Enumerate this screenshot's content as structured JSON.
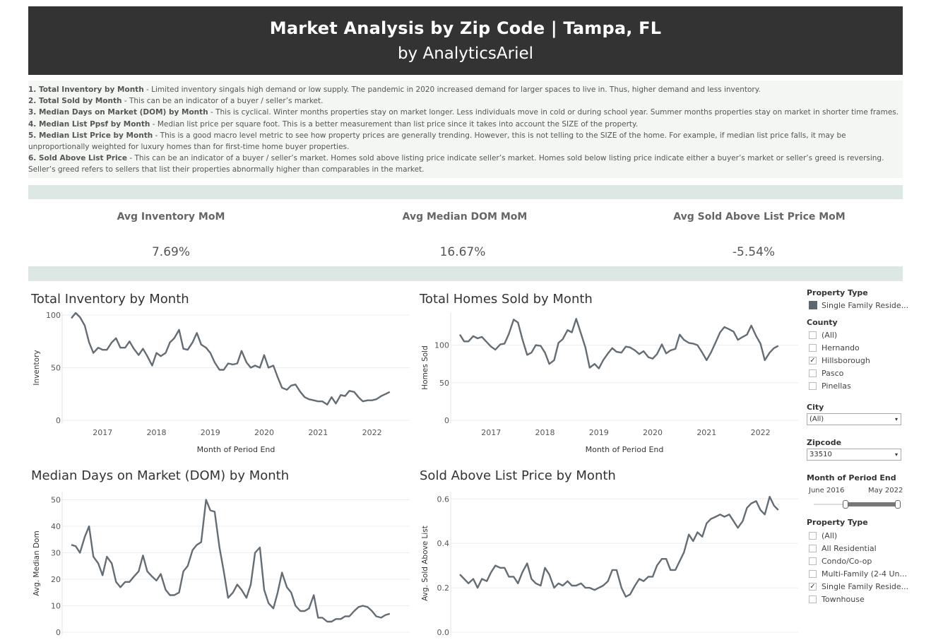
{
  "header": {
    "title": "Market Analysis by Zip Code | Tampa, FL",
    "subtitle": "by AnalyticsAriel"
  },
  "notes": [
    {
      "label": "1. Total Inventory by Month",
      "text": " - Limited inventory singals high demand or low supply. The pandemic in 2020 increased demand for larger spaces to live in. Thus, higher demand and less inventory."
    },
    {
      "label": "2. Total Sold by Month",
      "text": " - This can be an indicator of a buyer / seller’s market."
    },
    {
      "label": "3. Median Days on Market (DOM) by Month",
      "text": " - This is cyclical. Winter months properties stay on market longer. Less individuals move in cold or during school year. Summer months properties stay on market in shorter time frames."
    },
    {
      "label": "4. Median List Ppsf by Month",
      "text": " - Median list price per square foot. This is a better measurement than list price since it takes into account the SIZE of the property."
    },
    {
      "label": "5. Median List Price by Month",
      "text": " - This is a good macro level metric to see how property prices are generally trending. However, this is not telling to the SIZE of the home. For example, if median list price falls, it may be unproportionally weighted for luxury homes than for first-time home buyer properties."
    },
    {
      "label": "6. Sold Above List Price",
      "text": " - This can be an indicator of a buyer / seller’s market. Homes sold above listing price indicate seller’s market. Homes sold below listing price indicate either a buyer’s market or seller’s greed is reversing. Seller’s greed refers to sellers that list their properties abnormally higher than comparables in the market."
    }
  ],
  "kpis": [
    {
      "title": "Avg Inventory MoM",
      "value": "7.69%"
    },
    {
      "title": "Avg Median DOM MoM",
      "value": "16.67%"
    },
    {
      "title": "Avg Sold Above List Price MoM",
      "value": "-5.54%"
    }
  ],
  "filters": {
    "property_type_top": {
      "label": "Property Type",
      "legend_item": "Single Family Reside...",
      "legend_color": "#5e6670"
    },
    "county": {
      "label": "County",
      "options": [
        {
          "label": "(All)",
          "checked": false
        },
        {
          "label": "Hernando",
          "checked": false
        },
        {
          "label": "Hillsborough",
          "checked": true
        },
        {
          "label": "Pasco",
          "checked": false
        },
        {
          "label": "Pinellas",
          "checked": false
        }
      ]
    },
    "city": {
      "label": "City",
      "value": "(All)"
    },
    "zipcode": {
      "label": "Zipcode",
      "value": "33510"
    },
    "period": {
      "label": "Month of Period End",
      "start": "June 2016",
      "end": "May 2022"
    },
    "property_type": {
      "label": "Property Type",
      "options": [
        {
          "label": "(All)",
          "checked": false
        },
        {
          "label": "All Residential",
          "checked": false
        },
        {
          "label": "Condo/Co-op",
          "checked": false
        },
        {
          "label": "Multi-Family (2-4 Un...",
          "checked": false
        },
        {
          "label": "Single Family Reside...",
          "checked": true
        },
        {
          "label": "Townhouse",
          "checked": false
        }
      ]
    },
    "check_glyph": "✓",
    "dropdown_icon": "▾"
  },
  "chart_data": [
    {
      "id": "inventory",
      "type": "line",
      "title": "Total Inventory by Month",
      "xlabel": "Month of Period End",
      "ylabel": "Inventory",
      "color": "#646c74",
      "xlim": [
        2016.25,
        2022.7
      ],
      "ylim": [
        0,
        100
      ],
      "yticks": [
        0,
        50,
        100
      ],
      "xticks": [
        2017,
        2018,
        2019,
        2020,
        2021,
        2022
      ],
      "xticklabels": [
        "2017",
        "2018",
        "2019",
        "2020",
        "2021",
        "2022"
      ],
      "x": [
        2016.42,
        2016.5,
        2016.58,
        2016.67,
        2016.75,
        2016.83,
        2016.92,
        2017.0,
        2017.08,
        2017.17,
        2017.25,
        2017.33,
        2017.42,
        2017.5,
        2017.58,
        2017.67,
        2017.75,
        2017.83,
        2017.92,
        2018.0,
        2018.08,
        2018.17,
        2018.25,
        2018.33,
        2018.42,
        2018.5,
        2018.58,
        2018.67,
        2018.75,
        2018.83,
        2018.92,
        2019.0,
        2019.08,
        2019.17,
        2019.25,
        2019.33,
        2019.42,
        2019.5,
        2019.58,
        2019.67,
        2019.75,
        2019.83,
        2019.92,
        2020.0,
        2020.08,
        2020.17,
        2020.25,
        2020.33,
        2020.42,
        2020.5,
        2020.58,
        2020.67,
        2020.75,
        2020.83,
        2020.92,
        2021.0,
        2021.08,
        2021.17,
        2021.25,
        2021.33,
        2021.42,
        2021.5,
        2021.58,
        2021.67,
        2021.75,
        2021.83,
        2021.92,
        2022.0,
        2022.08,
        2022.17,
        2022.25,
        2022.33
      ],
      "y": [
        97,
        102,
        98,
        90,
        74,
        64,
        69,
        67,
        67,
        74,
        78,
        69,
        69,
        75,
        68,
        62,
        68,
        61,
        52,
        64,
        61,
        64,
        74,
        78,
        86,
        68,
        67,
        74,
        83,
        72,
        69,
        64,
        55,
        48,
        48,
        54,
        53,
        54,
        66,
        55,
        50,
        52,
        50,
        62,
        50,
        52,
        41,
        31,
        29,
        33,
        34,
        27,
        22,
        20,
        19,
        18,
        18,
        15,
        22,
        16,
        24,
        23,
        28,
        27,
        22,
        18,
        19,
        19,
        20,
        23,
        25,
        27
      ]
    },
    {
      "id": "sold",
      "type": "line",
      "title": "Total Homes Sold by Month",
      "xlabel": "Month of Period End",
      "ylabel": "Homes Sold",
      "color": "#646c74",
      "xlim": [
        2016.25,
        2022.7
      ],
      "ylim": [
        0,
        140
      ],
      "yticks": [
        0,
        50,
        100
      ],
      "xticks": [
        2017,
        2018,
        2019,
        2020,
        2021,
        2022
      ],
      "xticklabels": [
        "2017",
        "2018",
        "2019",
        "2020",
        "2021",
        "2022"
      ],
      "x": [
        2016.42,
        2016.5,
        2016.58,
        2016.67,
        2016.75,
        2016.83,
        2016.92,
        2017.0,
        2017.08,
        2017.17,
        2017.25,
        2017.33,
        2017.42,
        2017.5,
        2017.58,
        2017.67,
        2017.75,
        2017.83,
        2017.92,
        2018.0,
        2018.08,
        2018.17,
        2018.25,
        2018.33,
        2018.42,
        2018.5,
        2018.58,
        2018.67,
        2018.75,
        2018.83,
        2018.92,
        2019.0,
        2019.08,
        2019.17,
        2019.25,
        2019.33,
        2019.42,
        2019.5,
        2019.58,
        2019.67,
        2019.75,
        2019.83,
        2019.92,
        2020.0,
        2020.08,
        2020.17,
        2020.25,
        2020.33,
        2020.42,
        2020.5,
        2020.58,
        2020.67,
        2020.75,
        2020.83,
        2020.92,
        2021.0,
        2021.08,
        2021.17,
        2021.25,
        2021.33,
        2021.42,
        2021.5,
        2021.58,
        2021.67,
        2021.75,
        2021.83,
        2021.92,
        2022.0,
        2022.08,
        2022.17,
        2022.25,
        2022.33
      ],
      "y": [
        114,
        105,
        105,
        112,
        109,
        111,
        104,
        98,
        94,
        101,
        102,
        115,
        134,
        130,
        108,
        87,
        90,
        100,
        99,
        90,
        75,
        80,
        103,
        108,
        120,
        117,
        135,
        115,
        97,
        70,
        75,
        69,
        80,
        89,
        96,
        91,
        90,
        98,
        97,
        93,
        88,
        92,
        84,
        82,
        88,
        101,
        89,
        93,
        95,
        114,
        107,
        103,
        102,
        100,
        90,
        80,
        90,
        104,
        117,
        124,
        121,
        118,
        107,
        111,
        114,
        126,
        112,
        102,
        80,
        90,
        96,
        99
      ]
    },
    {
      "id": "dom",
      "type": "line",
      "title": "Median Days on Market (DOM) by Month",
      "xlabel": "",
      "ylabel": "Avg. Median Dom",
      "color": "#646c74",
      "xlim": [
        2016.25,
        2022.7
      ],
      "ylim": [
        0,
        52
      ],
      "yticks": [
        0,
        10,
        20,
        30,
        40,
        50
      ],
      "xticks": [],
      "xticklabels": [],
      "x": [
        2016.42,
        2016.5,
        2016.58,
        2016.67,
        2016.75,
        2016.83,
        2016.92,
        2017.0,
        2017.08,
        2017.17,
        2017.25,
        2017.33,
        2017.42,
        2017.5,
        2017.58,
        2017.67,
        2017.75,
        2017.83,
        2017.92,
        2018.0,
        2018.08,
        2018.17,
        2018.25,
        2018.33,
        2018.42,
        2018.5,
        2018.58,
        2018.67,
        2018.75,
        2018.83,
        2018.92,
        2019.0,
        2019.08,
        2019.17,
        2019.25,
        2019.33,
        2019.42,
        2019.5,
        2019.58,
        2019.67,
        2019.75,
        2019.83,
        2019.92,
        2020.0,
        2020.08,
        2020.17,
        2020.25,
        2020.33,
        2020.42,
        2020.5,
        2020.58,
        2020.67,
        2020.75,
        2020.83,
        2020.92,
        2021.0,
        2021.08,
        2021.17,
        2021.25,
        2021.33,
        2021.42,
        2021.5,
        2021.58,
        2021.67,
        2021.75,
        2021.83,
        2021.92,
        2022.0,
        2022.08,
        2022.17,
        2022.25,
        2022.33
      ],
      "y": [
        33,
        32.5,
        30,
        36,
        40,
        28.5,
        26,
        21.5,
        28.5,
        26,
        19,
        17,
        19,
        19,
        21,
        23,
        29,
        23,
        21,
        19.5,
        22,
        16,
        14,
        14,
        15,
        23,
        25,
        31,
        33,
        34,
        50,
        46,
        45.5,
        32,
        23,
        13,
        15,
        18,
        16,
        13,
        18,
        30,
        32,
        16,
        11,
        9,
        15,
        22.5,
        17,
        15,
        10,
        8,
        8,
        9,
        14,
        5.5,
        5.5,
        4,
        4,
        5,
        5,
        6,
        6,
        8,
        9.5,
        10,
        9.5,
        8,
        6,
        5.5,
        6.5,
        7
      ]
    },
    {
      "id": "above",
      "type": "line",
      "title": "Sold Above List Price by Month",
      "xlabel": "",
      "ylabel": "Avg. Sold Above List",
      "color": "#646c74",
      "xlim": [
        2016.25,
        2022.7
      ],
      "ylim": [
        0,
        0.62
      ],
      "yticks": [
        0.0,
        0.2,
        0.4,
        0.6
      ],
      "yticklabels": [
        "0.0",
        "0.2",
        "0.4",
        "0.6"
      ],
      "xticks": [],
      "xticklabels": [],
      "x": [
        2016.42,
        2016.5,
        2016.58,
        2016.67,
        2016.75,
        2016.83,
        2016.92,
        2017.0,
        2017.08,
        2017.17,
        2017.25,
        2017.33,
        2017.42,
        2017.5,
        2017.58,
        2017.67,
        2017.75,
        2017.83,
        2017.92,
        2018.0,
        2018.08,
        2018.17,
        2018.25,
        2018.33,
        2018.42,
        2018.5,
        2018.58,
        2018.67,
        2018.75,
        2018.83,
        2018.92,
        2019.0,
        2019.08,
        2019.17,
        2019.25,
        2019.33,
        2019.42,
        2019.5,
        2019.58,
        2019.67,
        2019.75,
        2019.83,
        2019.92,
        2020.0,
        2020.08,
        2020.17,
        2020.25,
        2020.33,
        2020.42,
        2020.5,
        2020.58,
        2020.67,
        2020.75,
        2020.83,
        2020.92,
        2021.0,
        2021.08,
        2021.17,
        2021.25,
        2021.33,
        2021.42,
        2021.5,
        2021.58,
        2021.67,
        2021.75,
        2021.83,
        2021.92,
        2022.0,
        2022.08,
        2022.17,
        2022.25,
        2022.33
      ],
      "y": [
        0.26,
        0.24,
        0.22,
        0.24,
        0.2,
        0.24,
        0.23,
        0.27,
        0.3,
        0.29,
        0.29,
        0.25,
        0.25,
        0.22,
        0.27,
        0.31,
        0.24,
        0.22,
        0.21,
        0.29,
        0.26,
        0.2,
        0.22,
        0.21,
        0.23,
        0.21,
        0.21,
        0.22,
        0.2,
        0.2,
        0.19,
        0.2,
        0.21,
        0.23,
        0.28,
        0.28,
        0.2,
        0.16,
        0.17,
        0.21,
        0.24,
        0.23,
        0.25,
        0.25,
        0.3,
        0.33,
        0.33,
        0.28,
        0.28,
        0.32,
        0.36,
        0.44,
        0.41,
        0.45,
        0.43,
        0.49,
        0.51,
        0.52,
        0.53,
        0.52,
        0.53,
        0.5,
        0.47,
        0.5,
        0.56,
        0.58,
        0.59,
        0.55,
        0.53,
        0.61,
        0.57,
        0.55
      ]
    }
  ]
}
